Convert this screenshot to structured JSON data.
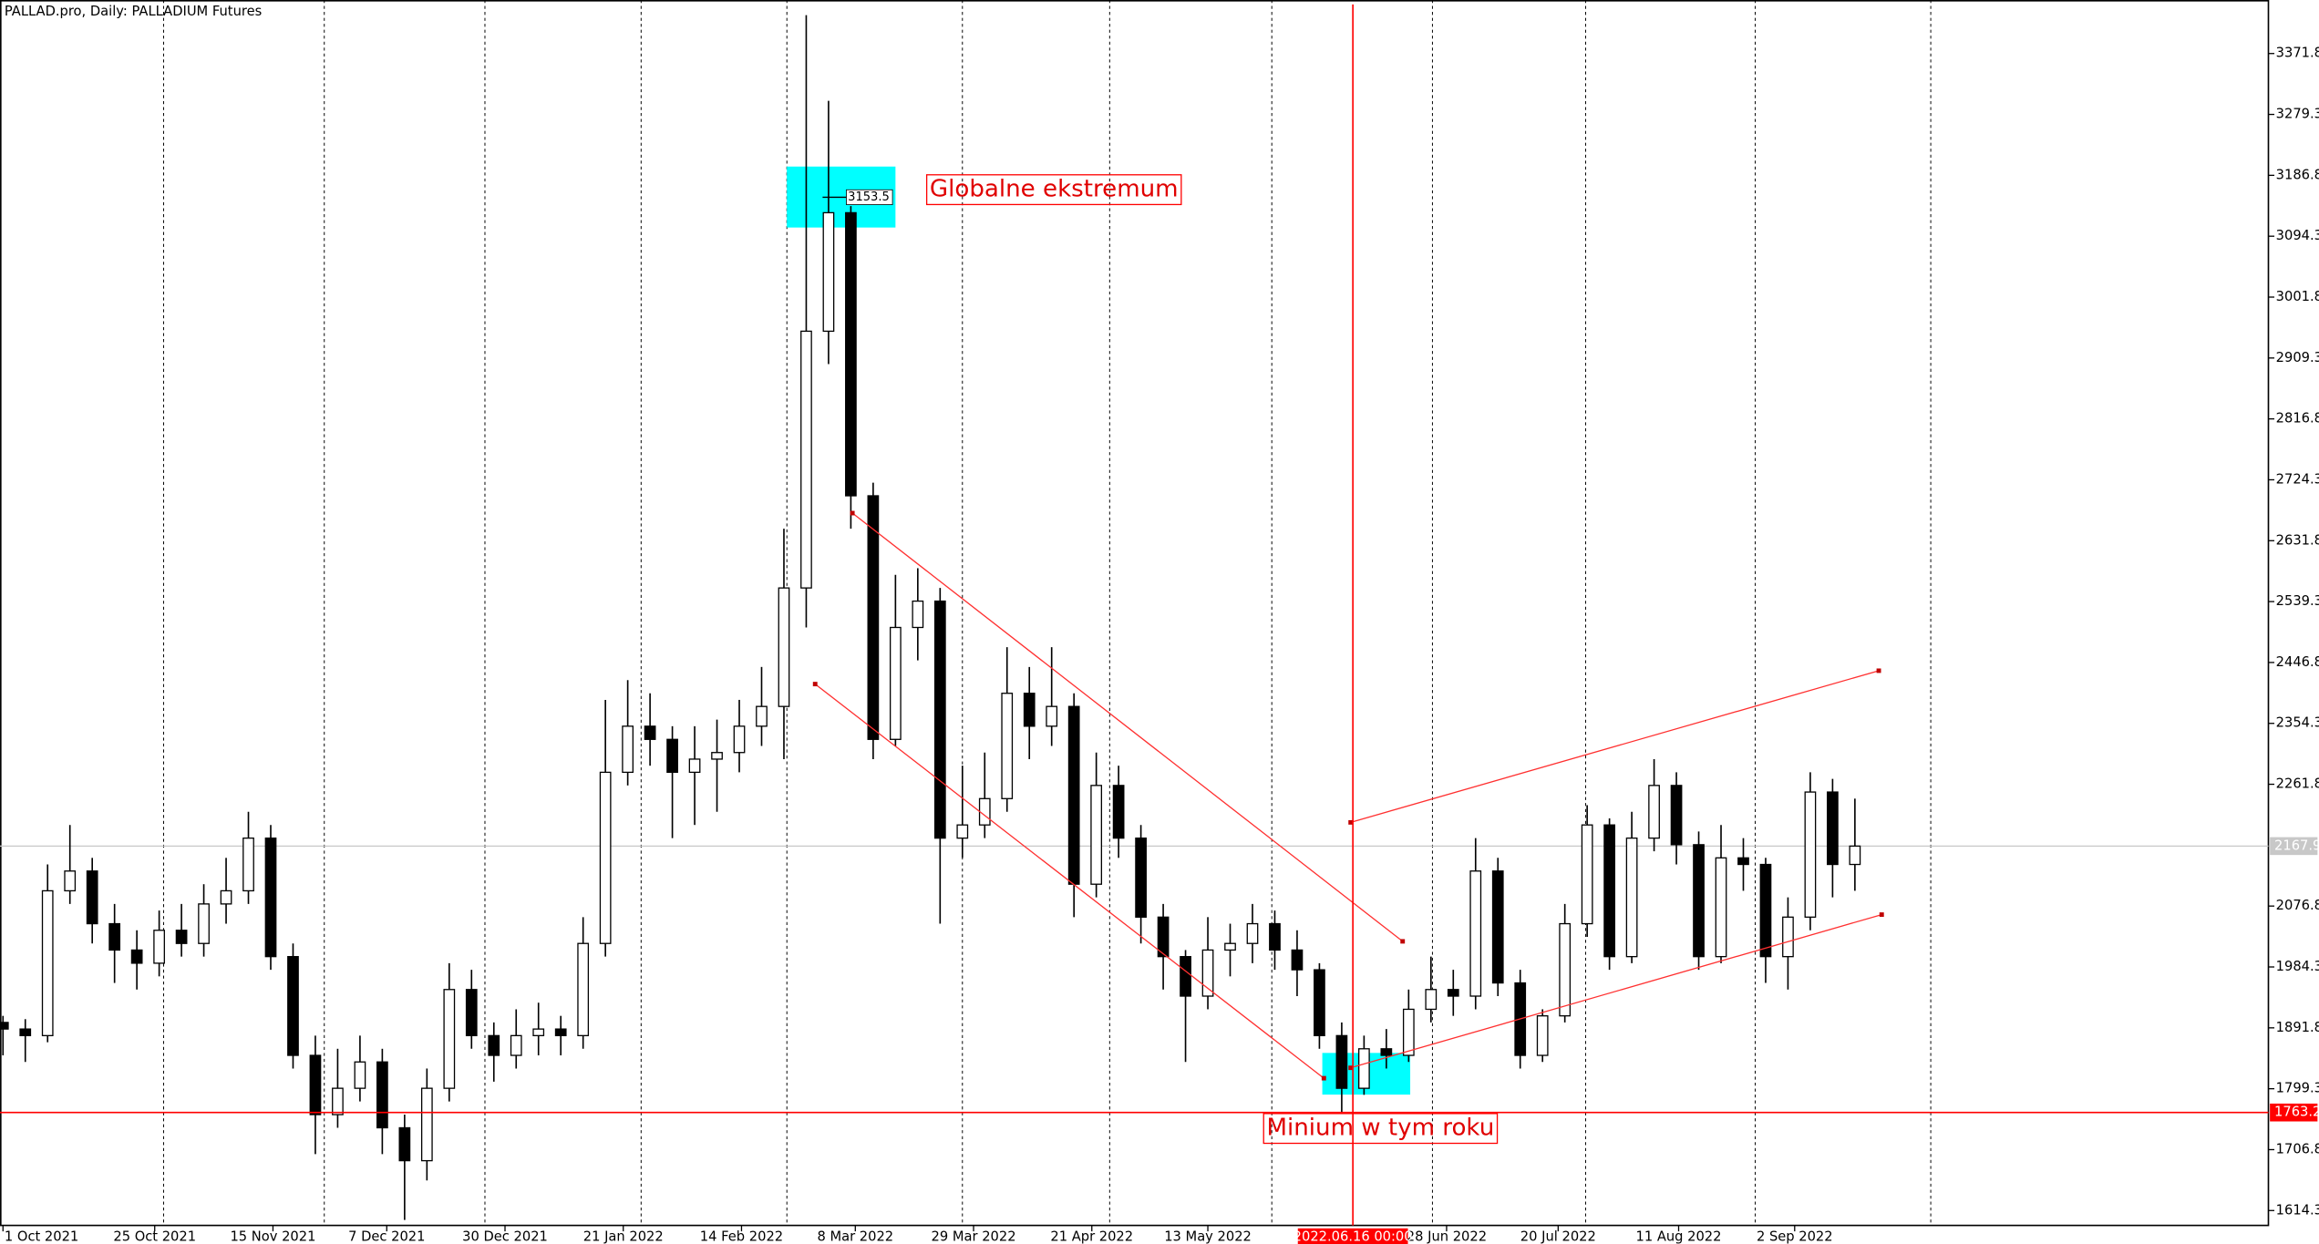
{
  "chart_data": {
    "type": "candlestick",
    "title": "PALLAD.pro, Daily:  PALLADIUM Futures",
    "xlim": [
      -0.1333,
      101.533
    ],
    "ylim": [
      1591.7,
      3453.1
    ],
    "yticks": [
      3371.8,
      3279.3,
      3186.8,
      3094.3,
      3001.8,
      2909.3,
      2816.8,
      2724.3,
      2631.8,
      2539.3,
      2446.8,
      2354.3,
      2261.8,
      2076.8,
      1984.3,
      1891.8,
      1799.3,
      1706.8,
      1614.3
    ],
    "xticks": [
      {
        "value": 0,
        "label": "1 Oct 2021"
      },
      {
        "value": 6.8,
        "label": "25 Oct 2021"
      },
      {
        "value": 12.1,
        "label": "15 Nov 2021"
      },
      {
        "value": 17.2,
        "label": "7 Dec 2021"
      },
      {
        "value": 22.5,
        "label": "30 Dec 2021"
      },
      {
        "value": 27.8,
        "label": "21 Jan 2022"
      },
      {
        "value": 33.1,
        "label": "14 Feb 2022"
      },
      {
        "value": 38.2,
        "label": "8 Mar 2022"
      },
      {
        "value": 43.5,
        "label": "29 Mar 2022"
      },
      {
        "value": 48.8,
        "label": "21 Apr 2022"
      },
      {
        "value": 54,
        "label": "13 May 2022"
      },
      {
        "value": 64.7,
        "label": "28 Jun 2022"
      },
      {
        "value": 69.7,
        "label": "20 Jul 2022"
      },
      {
        "value": 75.1,
        "label": "11 Aug 2022"
      },
      {
        "value": 80.3,
        "label": "2 Sep 2022"
      }
    ],
    "ohlc": [
      [
        1900,
        1910,
        1850,
        1890
      ],
      [
        1890,
        1905,
        1840,
        1880
      ],
      [
        1880,
        2140,
        1870,
        2100
      ],
      [
        2100,
        2200,
        2080,
        2130
      ],
      [
        2130,
        2150,
        2020,
        2050
      ],
      [
        2050,
        2080,
        1960,
        2010
      ],
      [
        2010,
        2040,
        1950,
        1990
      ],
      [
        1990,
        2070,
        1970,
        2040
      ],
      [
        2040,
        2080,
        2000,
        2020
      ],
      [
        2020,
        2110,
        2000,
        2080
      ],
      [
        2080,
        2150,
        2050,
        2100
      ],
      [
        2100,
        2220,
        2080,
        2180
      ],
      [
        2180,
        2200,
        1980,
        2000
      ],
      [
        2000,
        2020,
        1830,
        1850
      ],
      [
        1850,
        1880,
        1700,
        1760
      ],
      [
        1760,
        1860,
        1740,
        1800
      ],
      [
        1800,
        1880,
        1780,
        1840
      ],
      [
        1840,
        1860,
        1700,
        1740
      ],
      [
        1740,
        1760,
        1600,
        1690
      ],
      [
        1690,
        1830,
        1660,
        1800
      ],
      [
        1800,
        1990,
        1780,
        1950
      ],
      [
        1950,
        1980,
        1860,
        1880
      ],
      [
        1880,
        1900,
        1810,
        1850
      ],
      [
        1850,
        1920,
        1830,
        1880
      ],
      [
        1880,
        1930,
        1850,
        1890
      ],
      [
        1890,
        1910,
        1850,
        1880
      ],
      [
        1880,
        2060,
        1860,
        2020
      ],
      [
        2020,
        2390,
        2000,
        2280
      ],
      [
        2280,
        2420,
        2260,
        2350
      ],
      [
        2350,
        2400,
        2290,
        2330
      ],
      [
        2330,
        2350,
        2180,
        2280
      ],
      [
        2280,
        2350,
        2200,
        2300
      ],
      [
        2300,
        2360,
        2220,
        2310
      ],
      [
        2310,
        2390,
        2280,
        2350
      ],
      [
        2350,
        2440,
        2320,
        2380
      ],
      [
        2380,
        2650,
        2300,
        2560
      ],
      [
        2560,
        3430,
        2500,
        2950
      ],
      [
        2950,
        3300,
        2900,
        3130
      ],
      [
        3130,
        3140,
        2650,
        2700
      ],
      [
        2700,
        2720,
        2300,
        2330
      ],
      [
        2330,
        2580,
        2320,
        2500
      ],
      [
        2500,
        2590,
        2450,
        2540
      ],
      [
        2540,
        2560,
        2050,
        2180
      ],
      [
        2180,
        2290,
        2150,
        2200
      ],
      [
        2200,
        2310,
        2180,
        2240
      ],
      [
        2240,
        2470,
        2220,
        2400
      ],
      [
        2400,
        2440,
        2300,
        2350
      ],
      [
        2350,
        2470,
        2320,
        2380
      ],
      [
        2380,
        2400,
        2060,
        2110
      ],
      [
        2110,
        2310,
        2090,
        2260
      ],
      [
        2260,
        2290,
        2150,
        2180
      ],
      [
        2180,
        2200,
        2020,
        2060
      ],
      [
        2060,
        2080,
        1950,
        2000
      ],
      [
        2000,
        2010,
        1840,
        1940
      ],
      [
        1940,
        2060,
        1920,
        2010
      ],
      [
        2010,
        2050,
        1970,
        2020
      ],
      [
        2020,
        2080,
        1990,
        2050
      ],
      [
        2050,
        2070,
        1980,
        2010
      ],
      [
        2010,
        2040,
        1940,
        1980
      ],
      [
        1980,
        1990,
        1860,
        1880
      ],
      [
        1880,
        1900,
        1763.2,
        1800
      ],
      [
        1800,
        1880,
        1790,
        1860
      ],
      [
        1860,
        1890,
        1830,
        1850
      ],
      [
        1850,
        1950,
        1840,
        1920
      ],
      [
        1920,
        2000,
        1900,
        1950
      ],
      [
        1950,
        1980,
        1910,
        1940
      ],
      [
        1940,
        2180,
        1920,
        2130
      ],
      [
        2130,
        2150,
        1940,
        1960
      ],
      [
        1960,
        1980,
        1830,
        1850
      ],
      [
        1850,
        1920,
        1840,
        1910
      ],
      [
        1910,
        2080,
        1900,
        2050
      ],
      [
        2050,
        2230,
        2030,
        2200
      ],
      [
        2200,
        2210,
        1980,
        2000
      ],
      [
        2000,
        2220,
        1990,
        2180
      ],
      [
        2180,
        2300,
        2160,
        2260
      ],
      [
        2260,
        2280,
        2140,
        2170
      ],
      [
        2170,
        2190,
        1980,
        2000
      ],
      [
        2000,
        2200,
        1990,
        2150
      ],
      [
        2150,
        2180,
        2100,
        2140
      ],
      [
        2140,
        2150,
        1960,
        2000
      ],
      [
        2000,
        2090,
        1950,
        2060
      ],
      [
        2060,
        2280,
        2040,
        2250
      ],
      [
        2250,
        2270,
        2090,
        2140
      ],
      [
        2140,
        2240,
        2100,
        2167.9
      ]
    ],
    "current_price": 2167.9,
    "support_level": 1763.2,
    "peak_marker": {
      "x": 37,
      "value": 3153.5
    },
    "vertical_line": {
      "x": 60.5,
      "label": "2022.06.16 00:00"
    },
    "trendlines": [
      {
        "x": [
          38.07,
          62.73
        ],
        "y": [
          2673.7,
          2023.2
        ]
      },
      {
        "x": [
          36.4,
          59.2
        ],
        "y": [
          2414,
          1815.3
        ]
      },
      {
        "x": [
          60.4,
          84.07
        ],
        "y": [
          2203.9,
          2434.3
        ]
      },
      {
        "x": [
          60.4,
          84.2
        ],
        "y": [
          1831.1,
          2063.8
        ]
      }
    ],
    "zones": [
      {
        "x": [
          35.13,
          40
        ],
        "y": [
          3200.1,
          3107.5
        ]
      },
      {
        "x": [
          59.13,
          63.07
        ],
        "y": [
          1853.7,
          1790.4
        ]
      }
    ],
    "annotations": [
      {
        "text": "Globalne ekstremum",
        "x": 41.4,
        "y": 3165
      },
      {
        "text": "Minium w tym roku",
        "x": 56.5,
        "y": 1739
      }
    ]
  }
}
